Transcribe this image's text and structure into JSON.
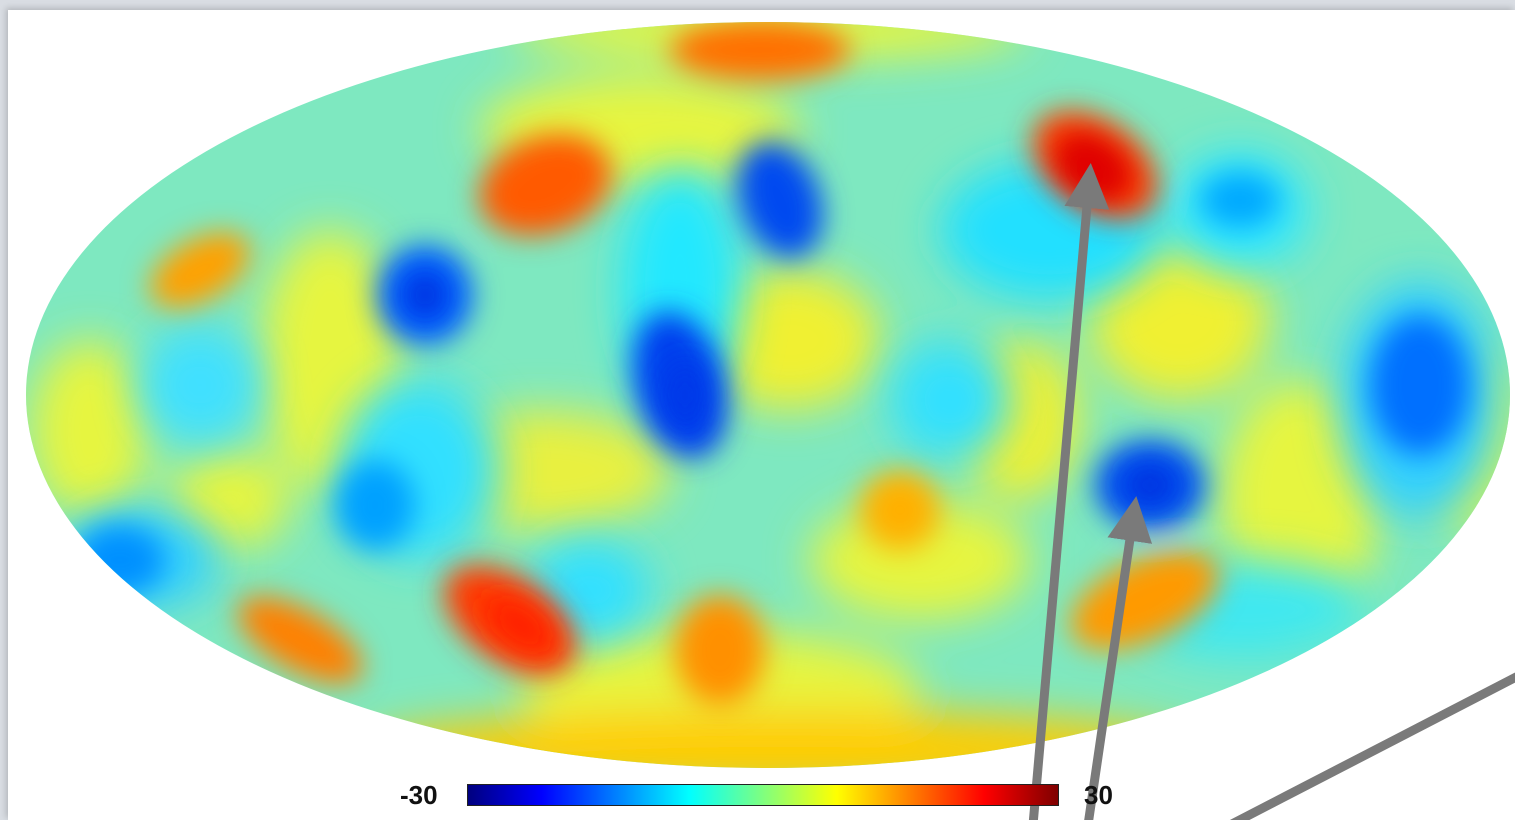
{
  "colorbar": {
    "min_label": "-30",
    "max_label": "30",
    "colormap": [
      "#00007f",
      "#0000ff",
      "#007fff",
      "#00ffff",
      "#7fff7f",
      "#ffff00",
      "#ff7f00",
      "#ff0000",
      "#7f0000"
    ]
  },
  "map": {
    "projection": "mollweide",
    "background_color": "#7ee8c0",
    "blobs": [
      {
        "kind": "hot",
        "color": "#ff5a00"
      },
      {
        "kind": "hot",
        "color": "#ff4000"
      },
      {
        "kind": "hot",
        "color": "#ff7000"
      },
      {
        "kind": "hot",
        "color": "#e00000"
      },
      {
        "kind": "hot",
        "color": "#ff3a00"
      },
      {
        "kind": "hot",
        "color": "#ff9a00"
      },
      {
        "kind": "hot",
        "color": "#ffa000"
      },
      {
        "kind": "hot",
        "color": "#ff8000"
      },
      {
        "kind": "hot",
        "color": "#ff9000"
      },
      {
        "kind": "hot",
        "color": "#ffb000"
      },
      {
        "kind": "cold",
        "color": "#0060ff"
      },
      {
        "kind": "cold",
        "color": "#0040ee"
      },
      {
        "kind": "cold",
        "color": "#0050f0"
      },
      {
        "kind": "cold",
        "color": "#0070ff"
      },
      {
        "kind": "cold",
        "color": "#0048f0"
      },
      {
        "kind": "cold",
        "color": "#00a0ff"
      },
      {
        "kind": "cold",
        "color": "#0090ff"
      },
      {
        "kind": "cold",
        "color": "#00a8ff"
      }
    ]
  },
  "arrows": {
    "color": "#7a7a7a",
    "count": 3
  }
}
